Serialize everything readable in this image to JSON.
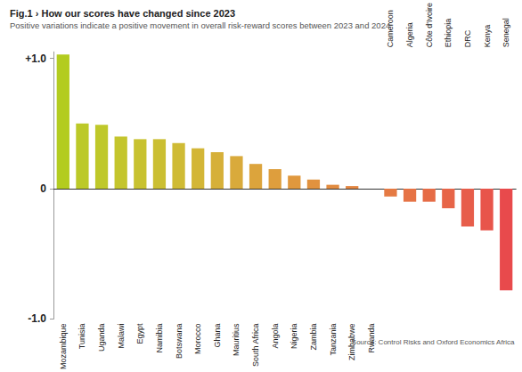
{
  "chart_data": {
    "type": "bar",
    "title": "Fig.1 › How our scores have changed since 2023",
    "subtitle": "Positive variations indicate a positive movement in overall risk-reward scores between 2023 and 2024",
    "annotations": [
      "Source: Control Risks and Oxford Economics Africa"
    ],
    "categories": [
      "Mozambique",
      "Tunisia",
      "Uganda",
      "Malawi",
      "Egypt",
      "Namibia",
      "Botswana",
      "Morocco",
      "Ghana",
      "Mauritius",
      "South Africa",
      "Angola",
      "Nigeria",
      "Zambia",
      "Tanzania",
      "Zimbabwe",
      "Rwanda",
      "Cameroon",
      "Algeria",
      "Côte d'Ivoire",
      "Ethiopia",
      "DRC",
      "Kenya",
      "Senegal"
    ],
    "values": [
      1.03,
      0.5,
      0.49,
      0.4,
      0.38,
      0.38,
      0.35,
      0.31,
      0.28,
      0.25,
      0.19,
      0.15,
      0.1,
      0.07,
      0.03,
      0.02,
      0,
      -0.06,
      -0.1,
      -0.1,
      -0.15,
      -0.29,
      -0.32,
      -0.78
    ],
    "colors": [
      "#b3cc1f",
      "#bcc928",
      "#bfc82a",
      "#c4c52d",
      "#c8c230",
      "#cbbf32",
      "#cfbb35",
      "#d3b637",
      "#d6b039",
      "#d9aa3b",
      "#dca43c",
      "#de9e3d",
      "#e0983e",
      "#e1923f",
      "#e28c40",
      "#e38641",
      "#e48042",
      "#e57a43",
      "#e67345",
      "#e66c46",
      "#e76548",
      "#e75d4a",
      "#e8554b",
      "#e84a4c"
    ],
    "ylim": [
      -1.0,
      1.05
    ],
    "yticks": [
      {
        "value": -1.0,
        "label": "-1.0"
      },
      0,
      {
        "value": 1.0,
        "label": "+1.0"
      }
    ],
    "grid": false,
    "data_labels": false
  }
}
